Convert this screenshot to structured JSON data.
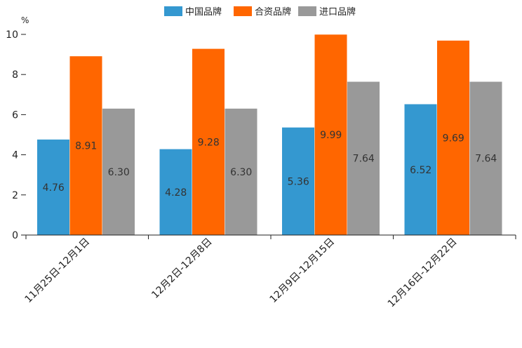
{
  "chart_data": {
    "type": "bar",
    "title": "",
    "xlabel": "",
    "ylabel": "%",
    "ylim": [
      0,
      10
    ],
    "yticks": [
      0,
      2,
      4,
      6,
      8,
      10
    ],
    "grid": false,
    "legend_position": "top-center",
    "categories": [
      "11月25日-12月1日",
      "12月2日-12月8日",
      "12月9日-12月15日",
      "12月16日-12月22日"
    ],
    "series": [
      {
        "name": "中国品牌",
        "color": "#3498d0",
        "values": [
          4.76,
          4.28,
          5.36,
          6.52
        ],
        "labels": [
          "4.76",
          "4.28",
          "5.36",
          "6.52"
        ]
      },
      {
        "name": "合资品牌",
        "color": "#ff6600",
        "values": [
          8.91,
          9.28,
          9.99,
          9.69
        ],
        "labels": [
          "8.91",
          "9.28",
          "9.99",
          "9.69"
        ]
      },
      {
        "name": "进口品牌",
        "color": "#999999",
        "values": [
          6.3,
          6.3,
          7.64,
          7.64
        ],
        "labels": [
          "6.30",
          "6.30",
          "7.64",
          "7.64"
        ]
      }
    ]
  }
}
